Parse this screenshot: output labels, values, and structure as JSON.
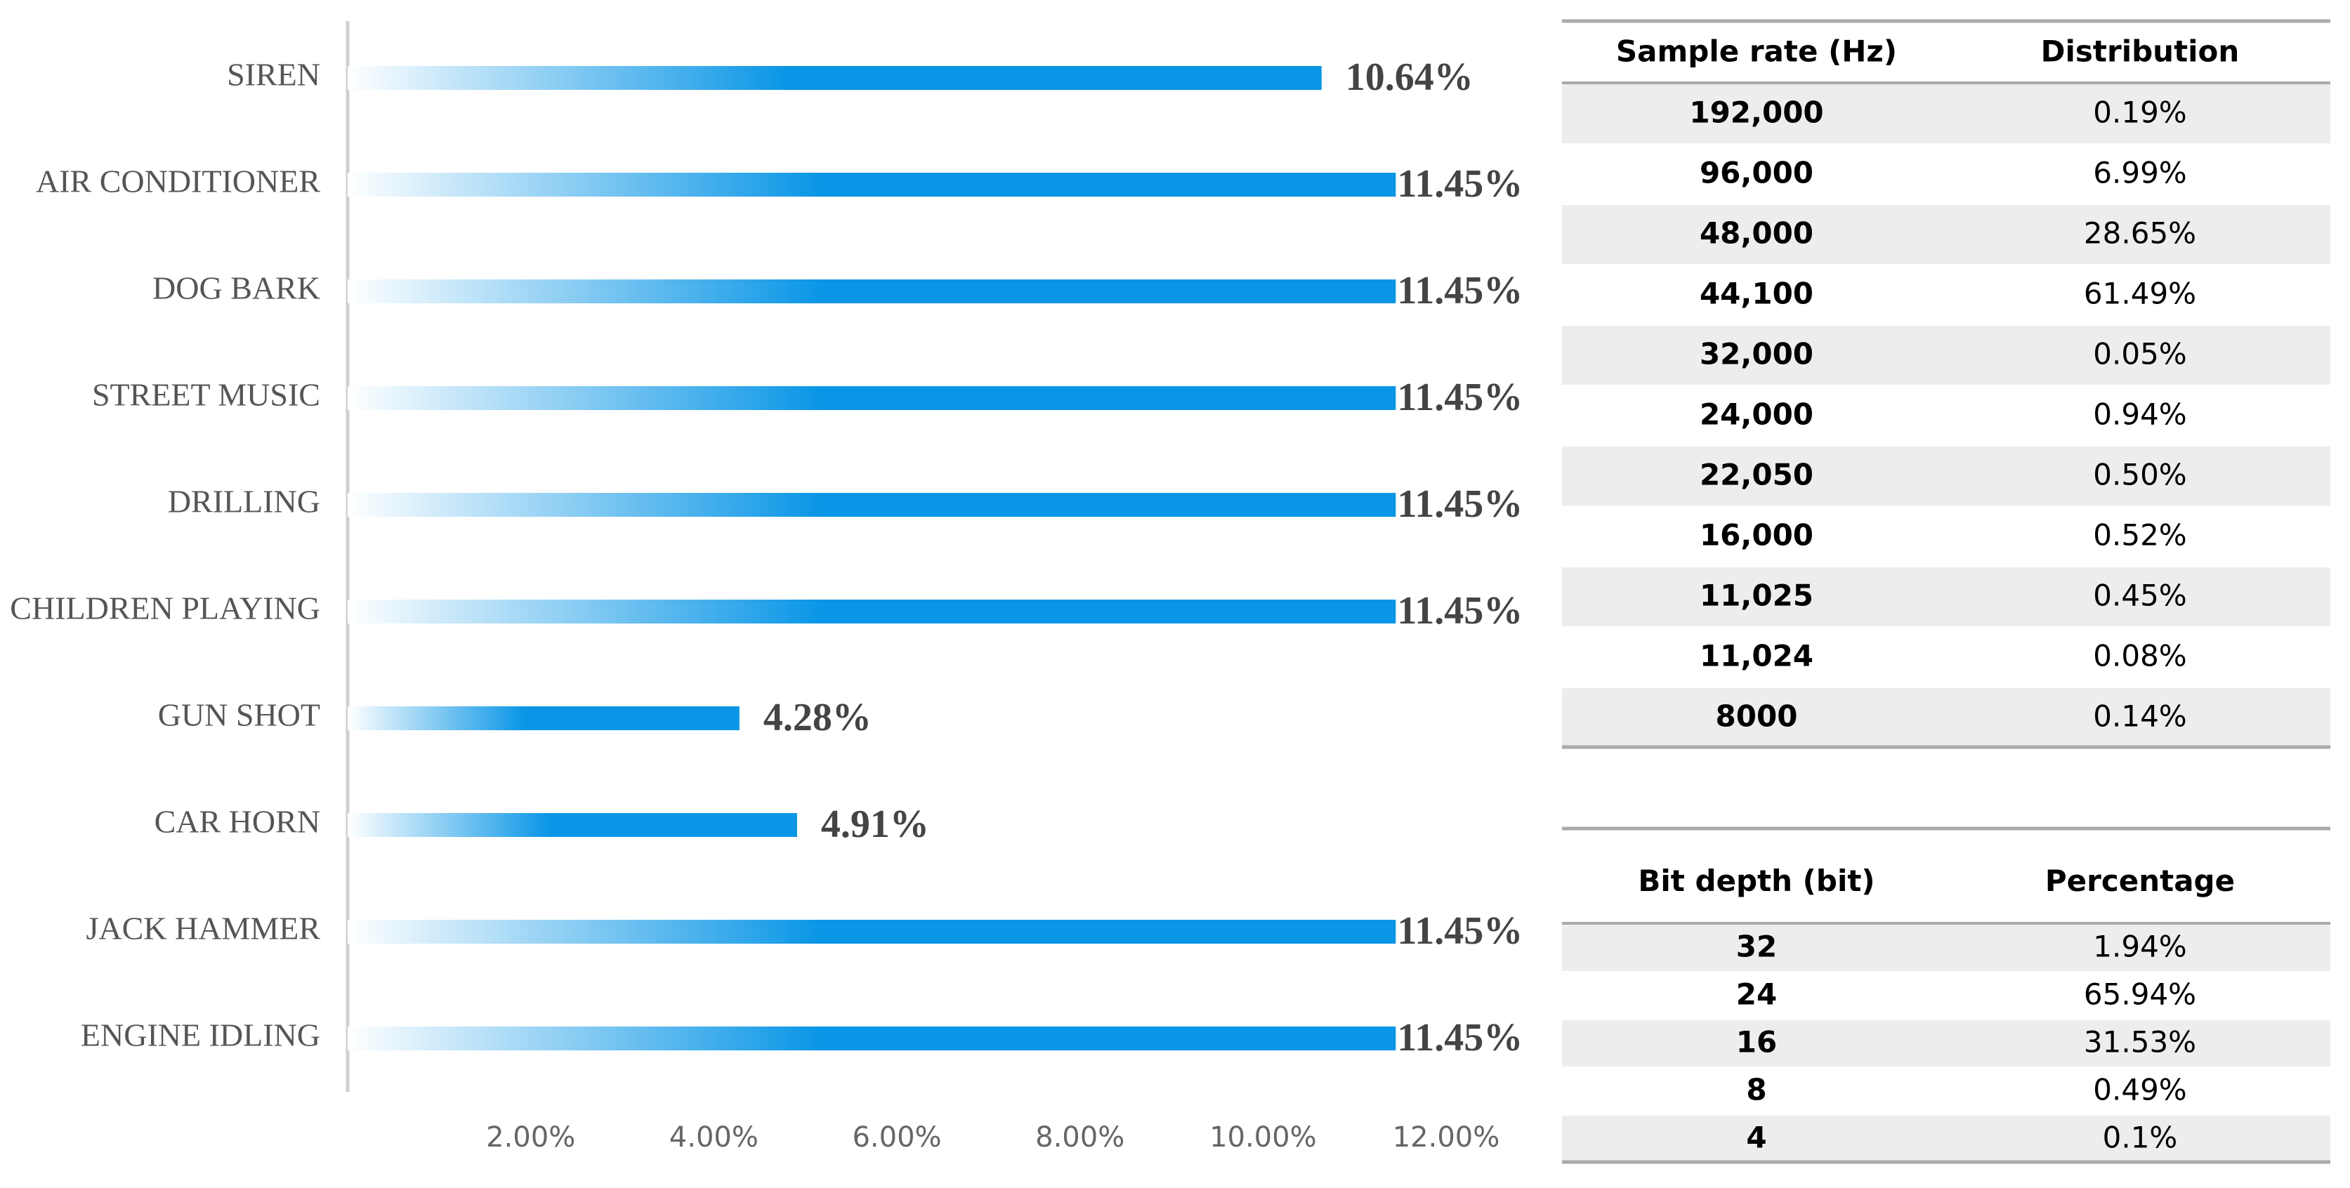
{
  "chart_data": {
    "type": "bar",
    "orientation": "horizontal",
    "categories": [
      "SIREN",
      "AIR CONDITIONER",
      "DOG BARK",
      "STREET MUSIC",
      "DRILLING",
      "CHILDREN PLAYING",
      "GUN SHOT",
      "CAR HORN",
      "JACK HAMMER",
      "ENGINE IDLING"
    ],
    "values": [
      10.64,
      11.45,
      11.45,
      11.45,
      11.45,
      11.45,
      4.28,
      4.91,
      11.45,
      11.45
    ],
    "value_labels": [
      "10.64%",
      "11.45%",
      "11.45%",
      "11.45%",
      "11.45%",
      "11.45%",
      "4.28%",
      "4.91%",
      "11.45%",
      "11.45%"
    ],
    "color": "#0a96e6",
    "xlim": [
      0,
      12
    ],
    "xticks": [
      {
        "value": 2,
        "label": "2.00%"
      },
      {
        "value": 4,
        "label": "4.00%"
      },
      {
        "value": 6,
        "label": "6.00%"
      },
      {
        "value": 8,
        "label": "8.00%"
      },
      {
        "value": 10,
        "label": "10.00%"
      },
      {
        "value": 12,
        "label": "12.00%"
      }
    ]
  },
  "tables": [
    {
      "header": [
        "Sample rate (Hz)",
        "Distribution"
      ],
      "rows": [
        [
          "192,000",
          "0.19%"
        ],
        [
          "96,000",
          "6.99%"
        ],
        [
          "48,000",
          "28.65%"
        ],
        [
          "44,100",
          "61.49%"
        ],
        [
          "32,000",
          "0.05%"
        ],
        [
          "24,000",
          "0.94%"
        ],
        [
          "22,050",
          "0.50%"
        ],
        [
          "16,000",
          "0.52%"
        ],
        [
          "11,025",
          "0.45%"
        ],
        [
          "11,024",
          "0.08%"
        ],
        [
          "8000",
          "0.14%"
        ]
      ]
    },
    {
      "header": [
        "Bit depth (bit)",
        "Percentage"
      ],
      "rows": [
        [
          "32",
          "1.94%"
        ],
        [
          "24",
          "65.94%"
        ],
        [
          "16",
          "31.53%"
        ],
        [
          "8",
          "0.49%"
        ],
        [
          "4",
          "0.1%"
        ]
      ]
    }
  ]
}
